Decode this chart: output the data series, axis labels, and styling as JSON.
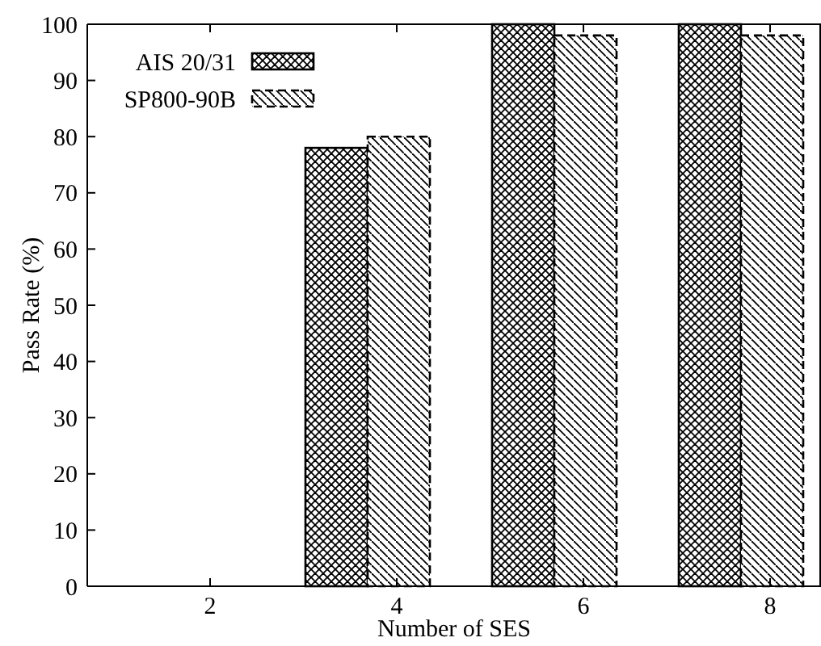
{
  "chart_data": {
    "type": "bar",
    "xlabel": "Number of SES",
    "ylabel": "Pass Rate (%)",
    "categories": [
      "2",
      "4",
      "6",
      "8"
    ],
    "series": [
      {
        "name": "AIS 20/31",
        "color": "#000000",
        "values": [
          0,
          78,
          100,
          100
        ]
      },
      {
        "name": "SP800-90B",
        "color": "#000000",
        "line_style": "dashed",
        "values": [
          0,
          80,
          98,
          98
        ]
      }
    ],
    "ylim": [
      0,
      100
    ],
    "yticks": [
      0,
      10,
      20,
      30,
      40,
      50,
      60,
      70,
      80,
      90,
      100
    ],
    "grid": false,
    "legend": "top left"
  }
}
